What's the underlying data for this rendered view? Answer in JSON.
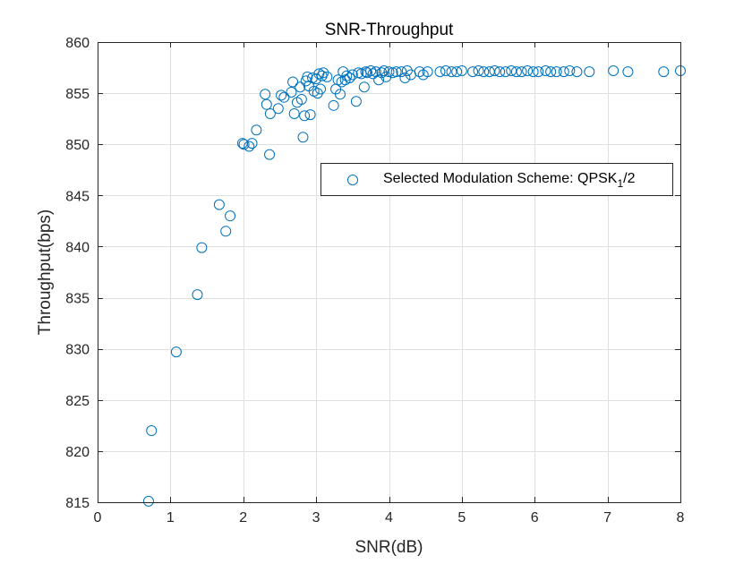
{
  "chart_data": {
    "type": "scatter",
    "title": "SNR-Throughput",
    "xlabel": "SNR(dB)",
    "ylabel": "Throughput(bps)",
    "xlim": [
      0,
      8
    ],
    "ylim": [
      815,
      860
    ],
    "xticks": [
      0,
      1,
      2,
      3,
      4,
      5,
      6,
      7,
      8
    ],
    "yticks": [
      815,
      820,
      825,
      830,
      835,
      840,
      845,
      850,
      855,
      860
    ],
    "xtick_labels": [
      "0",
      "1",
      "2",
      "3",
      "4",
      "5",
      "6",
      "7",
      "8"
    ],
    "ytick_labels": [
      "815",
      "820",
      "825",
      "830",
      "835",
      "840",
      "845",
      "850",
      "855",
      "860"
    ],
    "grid": true,
    "legend_position": "right-center",
    "series": [
      {
        "name": "Selected Modulation Scheme: QPSK_1/2",
        "legend_main": "Selected Modulation Scheme: QPSK",
        "legend_sub": "1",
        "legend_tail": "/2",
        "color": "#0072BD",
        "marker": "circle-open",
        "points": [
          [
            0.7,
            815.1
          ],
          [
            0.74,
            822.0
          ],
          [
            1.08,
            829.7
          ],
          [
            1.37,
            835.3
          ],
          [
            1.43,
            839.9
          ],
          [
            1.67,
            844.1
          ],
          [
            1.76,
            841.5
          ],
          [
            1.82,
            843.0
          ],
          [
            1.99,
            850.1
          ],
          [
            2.01,
            850.0
          ],
          [
            2.08,
            849.8
          ],
          [
            2.12,
            850.1
          ],
          [
            2.18,
            851.4
          ],
          [
            2.3,
            854.9
          ],
          [
            2.32,
            853.9
          ],
          [
            2.36,
            849.0
          ],
          [
            2.37,
            853.0
          ],
          [
            2.48,
            853.5
          ],
          [
            2.52,
            854.8
          ],
          [
            2.56,
            854.6
          ],
          [
            2.66,
            855.1
          ],
          [
            2.68,
            856.1
          ],
          [
            2.7,
            853.0
          ],
          [
            2.74,
            854.1
          ],
          [
            2.78,
            855.6
          ],
          [
            2.8,
            854.4
          ],
          [
            2.82,
            850.7
          ],
          [
            2.84,
            852.8
          ],
          [
            2.86,
            856.2
          ],
          [
            2.88,
            856.6
          ],
          [
            2.9,
            855.7
          ],
          [
            2.92,
            852.9
          ],
          [
            2.95,
            856.5
          ],
          [
            2.97,
            855.2
          ],
          [
            3.0,
            856.4
          ],
          [
            3.02,
            855.0
          ],
          [
            3.04,
            856.9
          ],
          [
            3.06,
            855.4
          ],
          [
            3.08,
            856.7
          ],
          [
            3.1,
            857.0
          ],
          [
            3.15,
            856.6
          ],
          [
            3.24,
            853.8
          ],
          [
            3.27,
            855.4
          ],
          [
            3.3,
            856.3
          ],
          [
            3.33,
            854.9
          ],
          [
            3.35,
            856.1
          ],
          [
            3.37,
            857.1
          ],
          [
            3.4,
            856.3
          ],
          [
            3.42,
            856.7
          ],
          [
            3.46,
            856.5
          ],
          [
            3.5,
            856.8
          ],
          [
            3.55,
            854.2
          ],
          [
            3.58,
            857.0
          ],
          [
            3.62,
            856.9
          ],
          [
            3.66,
            855.6
          ],
          [
            3.68,
            857.1
          ],
          [
            3.7,
            857.0
          ],
          [
            3.75,
            857.2
          ],
          [
            3.78,
            856.9
          ],
          [
            3.82,
            857.1
          ],
          [
            3.86,
            856.3
          ],
          [
            3.9,
            857.0
          ],
          [
            3.93,
            857.2
          ],
          [
            3.96,
            856.6
          ],
          [
            4.0,
            857.1
          ],
          [
            4.05,
            857.0
          ],
          [
            4.1,
            857.1
          ],
          [
            4.17,
            857.1
          ],
          [
            4.22,
            856.5
          ],
          [
            4.25,
            857.2
          ],
          [
            4.3,
            856.8
          ],
          [
            4.42,
            857.1
          ],
          [
            4.47,
            856.8
          ],
          [
            4.53,
            857.1
          ],
          [
            4.7,
            857.1
          ],
          [
            4.78,
            857.2
          ],
          [
            4.86,
            857.1
          ],
          [
            4.93,
            857.1
          ],
          [
            5.0,
            857.2
          ],
          [
            5.15,
            857.1
          ],
          [
            5.23,
            857.2
          ],
          [
            5.3,
            857.1
          ],
          [
            5.38,
            857.1
          ],
          [
            5.45,
            857.2
          ],
          [
            5.52,
            857.1
          ],
          [
            5.6,
            857.1
          ],
          [
            5.68,
            857.2
          ],
          [
            5.75,
            857.1
          ],
          [
            5.82,
            857.1
          ],
          [
            5.9,
            857.2
          ],
          [
            5.98,
            857.1
          ],
          [
            6.05,
            857.1
          ],
          [
            6.15,
            857.2
          ],
          [
            6.22,
            857.1
          ],
          [
            6.3,
            857.1
          ],
          [
            6.4,
            857.1
          ],
          [
            6.48,
            857.2
          ],
          [
            6.58,
            857.1
          ],
          [
            6.75,
            857.1
          ],
          [
            7.08,
            857.2
          ],
          [
            7.28,
            857.1
          ],
          [
            7.77,
            857.1
          ],
          [
            8.0,
            857.2
          ]
        ]
      }
    ]
  }
}
